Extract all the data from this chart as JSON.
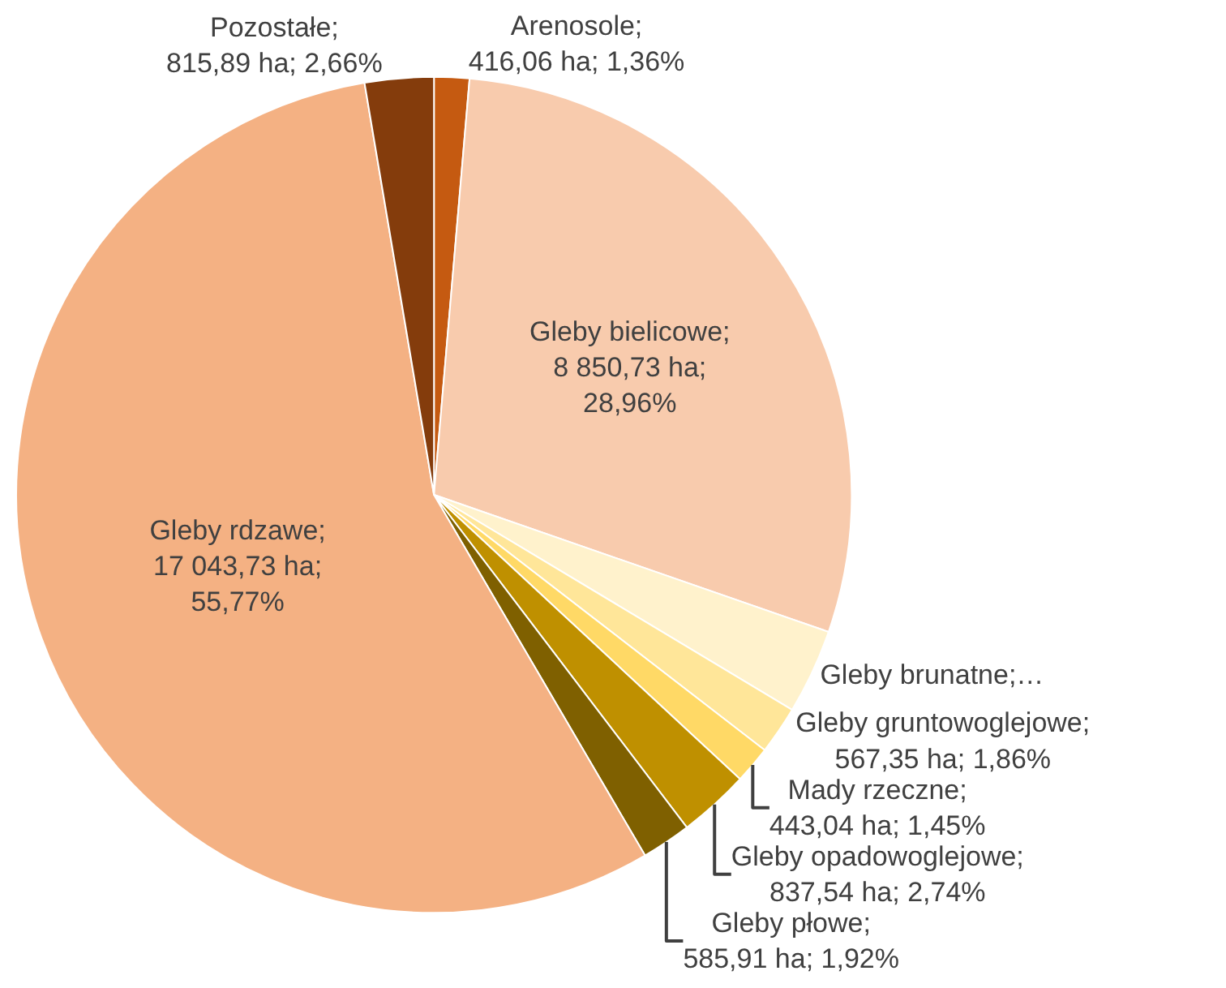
{
  "chart_data": {
    "type": "pie",
    "categories": [
      "Arenosole",
      "Gleby bielicowe",
      "Gleby brunatne",
      "Gleby gruntowoglejowe",
      "Mady rzeczne",
      "Gleby opadowoglejowe",
      "Gleby płowe",
      "Gleby rdzawe",
      "Pozostałe"
    ],
    "values": [
      1.36,
      28.96,
      3.28,
      1.86,
      1.45,
      2.74,
      1.92,
      55.77,
      2.66
    ],
    "value_labels": [
      "; 416,06 ha; 1,36%",
      "; 8 850,73 ha; 28,96%",
      ";…",
      "; 567,35 ha; 1,86%",
      "; 443,04 ha; 1,45%",
      "; 837,54 ha; 2,74%",
      "; 585,91 ha; 1,92%",
      "; 17 043,73 ha; 55,77%",
      "; 815,89 ha; 2,66%"
    ],
    "colors": [
      "#c55a11",
      "#f8cbad",
      "#fff2cc",
      "#ffe699",
      "#ffd966",
      "#bf9000",
      "#7f6000",
      "#f4b183",
      "#843c0c"
    ],
    "legend": false
  }
}
